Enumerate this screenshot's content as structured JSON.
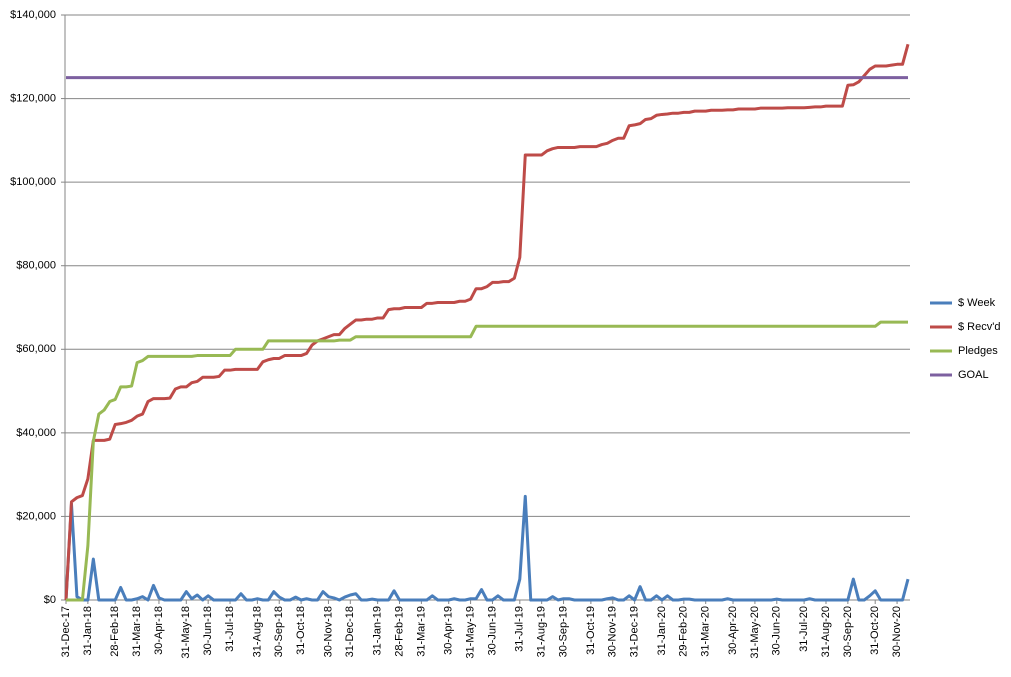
{
  "chart_data": {
    "type": "line",
    "categories": [
      "31-Dec-17",
      null,
      null,
      null,
      "31-Jan-18",
      null,
      null,
      null,
      null,
      "28-Feb-18",
      null,
      null,
      null,
      "31-Mar-18",
      null,
      null,
      null,
      "30-Apr-18",
      null,
      null,
      null,
      null,
      "31-May-18",
      null,
      null,
      null,
      "30-Jun-18",
      null,
      null,
      null,
      "31-Jul-18",
      null,
      null,
      null,
      null,
      "31-Aug-18",
      null,
      null,
      null,
      "30-Sep-18",
      null,
      null,
      null,
      "31-Oct-18",
      null,
      null,
      null,
      null,
      "30-Nov-18",
      null,
      null,
      null,
      "31-Dec-18",
      null,
      null,
      null,
      null,
      "31-Jan-19",
      null,
      null,
      null,
      "28-Feb-19",
      null,
      null,
      null,
      "31-Mar-19",
      null,
      null,
      null,
      null,
      "30-Apr-19",
      null,
      null,
      null,
      "31-May-19",
      null,
      null,
      null,
      "30-Jun-19",
      null,
      null,
      null,
      null,
      "31-Jul-19",
      null,
      null,
      null,
      "31-Aug-19",
      null,
      null,
      null,
      "30-Sep-19",
      null,
      null,
      null,
      null,
      "31-Oct-19",
      null,
      null,
      null,
      "30-Nov-19",
      null,
      null,
      null,
      "31-Dec-19",
      null,
      null,
      null,
      null,
      "31-Jan-20",
      null,
      null,
      null,
      "29-Feb-20",
      null,
      null,
      null,
      "31-Mar-20",
      null,
      null,
      null,
      null,
      "30-Apr-20",
      null,
      null,
      null,
      "31-May-20",
      null,
      null,
      null,
      "30-Jun-20",
      null,
      null,
      null,
      null,
      "31-Jul-20",
      null,
      null,
      null,
      "31-Aug-20",
      null,
      null,
      null,
      "30-Sep-20",
      null,
      null,
      null,
      null,
      "31-Oct-20",
      null,
      null,
      null,
      "30-Nov-20",
      null,
      null
    ],
    "series": [
      {
        "name": "$ Week",
        "color": "#4a7ebb",
        "values": [
          0,
          23000,
          800,
          0,
          0,
          9800,
          0,
          0,
          0,
          0,
          3000,
          0,
          0,
          300,
          800,
          0,
          3500,
          500,
          0,
          0,
          0,
          0,
          2000,
          300,
          1200,
          0,
          1000,
          0,
          0,
          0,
          0,
          0,
          1500,
          0,
          0,
          300,
          0,
          0,
          2000,
          700,
          0,
          0,
          700,
          0,
          300,
          0,
          0,
          2000,
          800,
          500,
          0,
          700,
          1200,
          1500,
          0,
          0,
          200,
          0,
          0,
          0,
          2200,
          0,
          0,
          0,
          0,
          0,
          0,
          1000,
          0,
          0,
          0,
          300,
          0,
          0,
          300,
          300,
          2500,
          0,
          0,
          1000,
          0,
          0,
          0,
          5000,
          24800,
          0,
          0,
          0,
          0,
          800,
          0,
          300,
          300,
          0,
          0,
          0,
          0,
          0,
          0,
          300,
          500,
          0,
          0,
          1000,
          0,
          3200,
          0,
          0,
          1000,
          0,
          1000,
          0,
          0,
          200,
          200,
          0,
          0,
          0,
          0,
          0,
          0,
          300,
          0,
          0,
          0,
          0,
          0,
          0,
          0,
          0,
          200,
          0,
          0,
          0,
          0,
          0,
          300,
          0,
          0,
          0,
          0,
          0,
          0,
          0,
          5000,
          0,
          0,
          1000,
          2200,
          0,
          0,
          0,
          0,
          0,
          5000
        ]
      },
      {
        "name": "$ Recv'd",
        "color": "#be4b48",
        "values": [
          0,
          23500,
          24500,
          25000,
          29000,
          38200,
          38200,
          38200,
          38500,
          42000,
          42200,
          42500,
          43000,
          44000,
          44500,
          47500,
          48200,
          48200,
          48200,
          48300,
          50500,
          51000,
          51000,
          52000,
          52300,
          53300,
          53300,
          53300,
          53500,
          55000,
          55000,
          55200,
          55200,
          55200,
          55200,
          55200,
          57000,
          57500,
          57800,
          57800,
          58500,
          58500,
          58500,
          58500,
          59000,
          61000,
          62000,
          62500,
          63000,
          63500,
          63500,
          65000,
          66000,
          67000,
          67000,
          67200,
          67200,
          67500,
          67500,
          69500,
          69700,
          69700,
          70000,
          70000,
          70000,
          70000,
          71000,
          71000,
          71200,
          71200,
          71200,
          71200,
          71500,
          71500,
          72000,
          74500,
          74500,
          75000,
          76000,
          76000,
          76200,
          76200,
          77000,
          82000,
          106500,
          106500,
          106500,
          106500,
          107500,
          108000,
          108300,
          108300,
          108300,
          108300,
          108500,
          108500,
          108500,
          108500,
          109000,
          109300,
          110000,
          110500,
          110500,
          113500,
          113700,
          114000,
          115000,
          115200,
          116000,
          116200,
          116300,
          116500,
          116500,
          116700,
          116700,
          117000,
          117000,
          117000,
          117200,
          117200,
          117200,
          117300,
          117300,
          117500,
          117500,
          117500,
          117500,
          117700,
          117700,
          117700,
          117700,
          117700,
          117800,
          117800,
          117800,
          117800,
          117900,
          118000,
          118000,
          118200,
          118200,
          118200,
          118200,
          123200,
          123300,
          124000,
          125500,
          127000,
          127800,
          127800,
          127800,
          128000,
          128200,
          128200,
          133000
        ]
      },
      {
        "name": "Pledges",
        "color": "#98b954",
        "values": [
          0,
          0,
          0,
          0,
          13000,
          38000,
          44500,
          45500,
          47500,
          48000,
          51000,
          51000,
          51200,
          56800,
          57300,
          58300,
          58300,
          58300,
          58300,
          58300,
          58300,
          58300,
          58300,
          58300,
          58500,
          58500,
          58500,
          58500,
          58500,
          58500,
          58500,
          60000,
          60000,
          60000,
          60000,
          60000,
          60000,
          62000,
          62000,
          62000,
          62000,
          62000,
          62000,
          62000,
          62000,
          62000,
          62000,
          62000,
          62000,
          62000,
          62200,
          62200,
          62200,
          63000,
          63000,
          63000,
          63000,
          63000,
          63000,
          63000,
          63000,
          63000,
          63000,
          63000,
          63000,
          63000,
          63000,
          63000,
          63000,
          63000,
          63000,
          63000,
          63000,
          63000,
          63000,
          65500,
          65500,
          65500,
          65500,
          65500,
          65500,
          65500,
          65500,
          65500,
          65500,
          65500,
          65500,
          65500,
          65500,
          65500,
          65500,
          65500,
          65500,
          65500,
          65500,
          65500,
          65500,
          65500,
          65500,
          65500,
          65500,
          65500,
          65500,
          65500,
          65500,
          65500,
          65500,
          65500,
          65500,
          65500,
          65500,
          65500,
          65500,
          65500,
          65500,
          65500,
          65500,
          65500,
          65500,
          65500,
          65500,
          65500,
          65500,
          65500,
          65500,
          65500,
          65500,
          65500,
          65500,
          65500,
          65500,
          65500,
          65500,
          65500,
          65500,
          65500,
          65500,
          65500,
          65500,
          65500,
          65500,
          65500,
          65500,
          65500,
          65500,
          65500,
          65500,
          65500,
          65500,
          66500,
          66500,
          66500,
          66500,
          66500,
          66500
        ]
      },
      {
        "name": "GOAL",
        "color": "#7d60a0",
        "values": [
          125000,
          125000,
          125000,
          125000,
          125000,
          125000,
          125000,
          125000,
          125000,
          125000,
          125000,
          125000,
          125000,
          125000,
          125000,
          125000,
          125000,
          125000,
          125000,
          125000,
          125000,
          125000,
          125000,
          125000,
          125000,
          125000,
          125000,
          125000,
          125000,
          125000,
          125000,
          125000,
          125000,
          125000,
          125000,
          125000,
          125000,
          125000,
          125000,
          125000,
          125000,
          125000,
          125000,
          125000,
          125000,
          125000,
          125000,
          125000,
          125000,
          125000,
          125000,
          125000,
          125000,
          125000,
          125000,
          125000,
          125000,
          125000,
          125000,
          125000,
          125000,
          125000,
          125000,
          125000,
          125000,
          125000,
          125000,
          125000,
          125000,
          125000,
          125000,
          125000,
          125000,
          125000,
          125000,
          125000,
          125000,
          125000,
          125000,
          125000,
          125000,
          125000,
          125000,
          125000,
          125000,
          125000,
          125000,
          125000,
          125000,
          125000,
          125000,
          125000,
          125000,
          125000,
          125000,
          125000,
          125000,
          125000,
          125000,
          125000,
          125000,
          125000,
          125000,
          125000,
          125000,
          125000,
          125000,
          125000,
          125000,
          125000,
          125000,
          125000,
          125000,
          125000,
          125000,
          125000,
          125000,
          125000,
          125000,
          125000,
          125000,
          125000,
          125000,
          125000,
          125000,
          125000,
          125000,
          125000,
          125000,
          125000,
          125000,
          125000,
          125000,
          125000,
          125000,
          125000,
          125000,
          125000,
          125000,
          125000,
          125000,
          125000,
          125000,
          125000,
          125000,
          125000,
          125000,
          125000,
          125000,
          125000,
          125000,
          125000,
          125000,
          125000,
          125000
        ]
      }
    ],
    "ylim": [
      0,
      140000
    ],
    "yticks": [
      {
        "value": 0,
        "label": "$0"
      },
      {
        "value": 20000,
        "label": "$20,000"
      },
      {
        "value": 40000,
        "label": "$40,000"
      },
      {
        "value": 60000,
        "label": "$60,000"
      },
      {
        "value": 80000,
        "label": "$80,000"
      },
      {
        "value": 100000,
        "label": "$100,000"
      },
      {
        "value": 120000,
        "label": "$120,000"
      },
      {
        "value": 140000,
        "label": "$140,000"
      }
    ],
    "grid": true,
    "legend": "right"
  }
}
